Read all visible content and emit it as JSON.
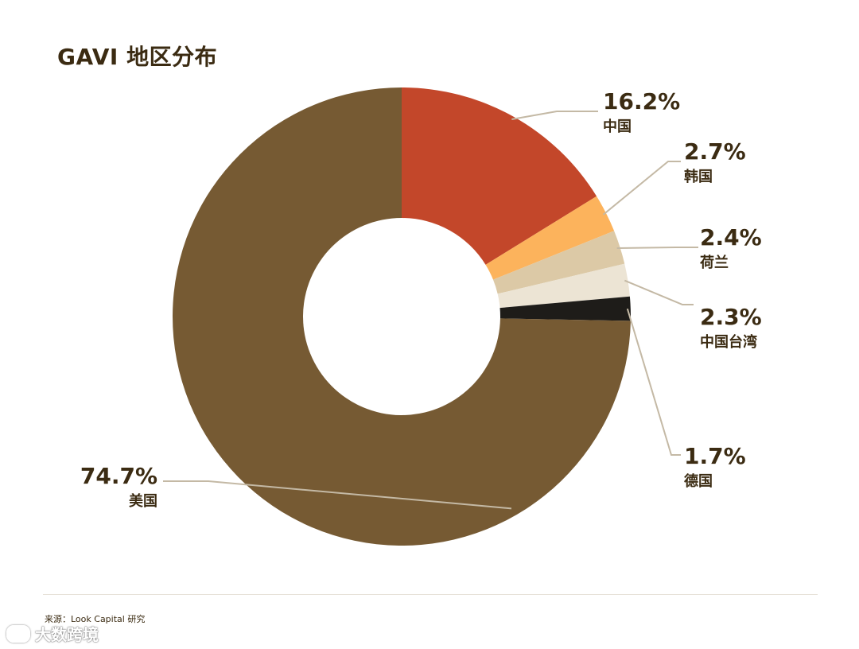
{
  "title": "GAVI 地区分布",
  "source": "来源：Look Capital 研究",
  "watermark": "大数跨境",
  "chart_data": {
    "type": "pie",
    "donut": true,
    "title": "GAVI 地区分布",
    "slices": [
      {
        "label": "中国",
        "value": 16.2,
        "display": "16.2%",
        "color": "#c3472a"
      },
      {
        "label": "韩国",
        "value": 2.7,
        "display": "2.7%",
        "color": "#fcb35c"
      },
      {
        "label": "荷兰",
        "value": 2.4,
        "display": "2.4%",
        "color": "#dcc9a6"
      },
      {
        "label": "中国台湾",
        "value": 2.3,
        "display": "2.3%",
        "color": "#ece4d4"
      },
      {
        "label": "德国",
        "value": 1.7,
        "display": "1.7%",
        "color": "#1e1c19"
      },
      {
        "label": "美国",
        "value": 74.7,
        "display": "74.7%",
        "color": "#765a33"
      }
    ],
    "label_color": "#3b2b12",
    "leader_color": "#c4b9a5"
  }
}
